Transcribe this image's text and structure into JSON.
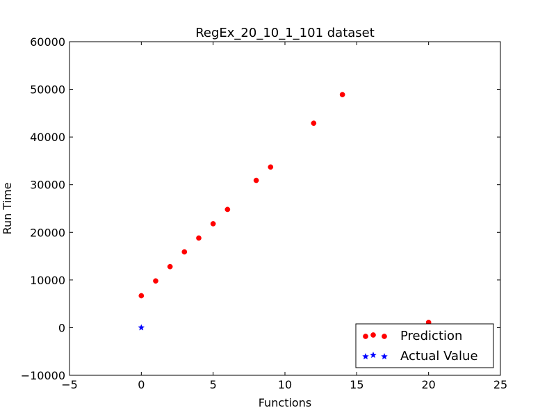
{
  "chart_data": {
    "type": "scatter",
    "title": "RegEx_20_10_1_101 dataset",
    "xlabel": "Functions",
    "ylabel": "Run Time",
    "xlim": [
      -5,
      25
    ],
    "ylim": [
      -10000,
      60000
    ],
    "x_ticks": [
      -5,
      0,
      5,
      10,
      15,
      20,
      25
    ],
    "y_ticks": [
      -10000,
      0,
      10000,
      20000,
      30000,
      40000,
      50000,
      60000
    ],
    "x_tick_labels": [
      "−5",
      "0",
      "5",
      "10",
      "15",
      "20",
      "25"
    ],
    "y_tick_labels": [
      "−10000",
      "0",
      "10000",
      "20000",
      "30000",
      "40000",
      "50000",
      "60000"
    ],
    "grid": false,
    "legend_position": "lower-right",
    "series": [
      {
        "name": "Prediction",
        "marker": "circle",
        "color": "#ff0000",
        "x": [
          0,
          1,
          2,
          3,
          4,
          5,
          6,
          8,
          9,
          12,
          14,
          20
        ],
        "y": [
          6700,
          9800,
          12800,
          15900,
          18800,
          21800,
          24800,
          30900,
          33700,
          42900,
          48900,
          1100
        ]
      },
      {
        "name": "Actual Value",
        "marker": "star",
        "color": "#0000ff",
        "x": [
          0
        ],
        "y": [
          0
        ]
      }
    ]
  }
}
